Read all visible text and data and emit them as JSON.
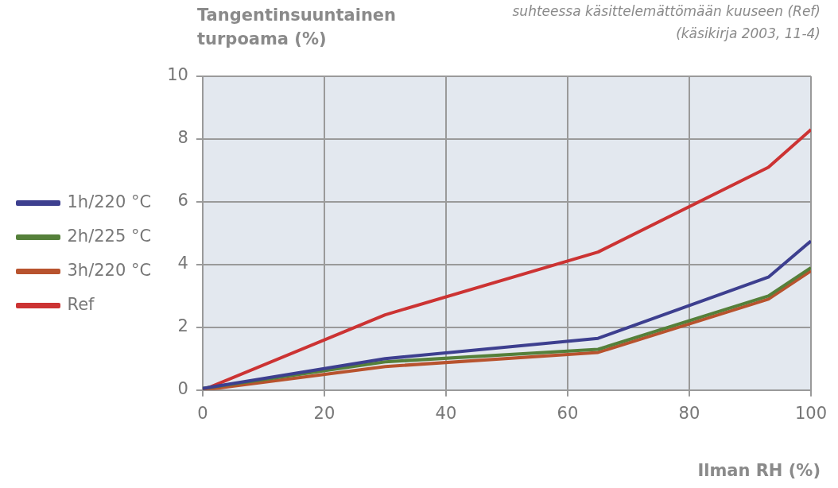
{
  "chart_data": {
    "type": "line",
    "xlabel": "Ilman RH (%)",
    "ylabel": "Tangentinsuuntainen turpoama (%)",
    "annotations": [
      "suhteessa käsittelemättömään kuuseen (Ref)",
      "(käsikirja 2003, 11-4)"
    ],
    "x": [
      0,
      30,
      65,
      93,
      100
    ],
    "series": [
      {
        "name": "1h/220 °C",
        "color": "#3d3f8f",
        "values": [
          0.05,
          1.0,
          1.65,
          3.6,
          4.75
        ]
      },
      {
        "name": "2h/225 °C",
        "color": "#55803a",
        "values": [
          0.05,
          0.9,
          1.3,
          3.0,
          3.9
        ]
      },
      {
        "name": "3h/220 °C",
        "color": "#b8532e",
        "values": [
          0,
          0.75,
          1.2,
          2.9,
          3.8
        ]
      },
      {
        "name": "Ref",
        "color": "#cc3333",
        "values": [
          0,
          2.4,
          4.4,
          7.1,
          8.3
        ]
      }
    ],
    "xlim": [
      0,
      100
    ],
    "xticks": [
      0,
      20,
      40,
      60,
      80,
      100
    ],
    "ylim": [
      0,
      10
    ],
    "yticks": [
      0,
      2,
      4,
      6,
      8,
      10
    ],
    "grid": true,
    "legend": "left",
    "marker": "none",
    "line_style": "solid"
  }
}
